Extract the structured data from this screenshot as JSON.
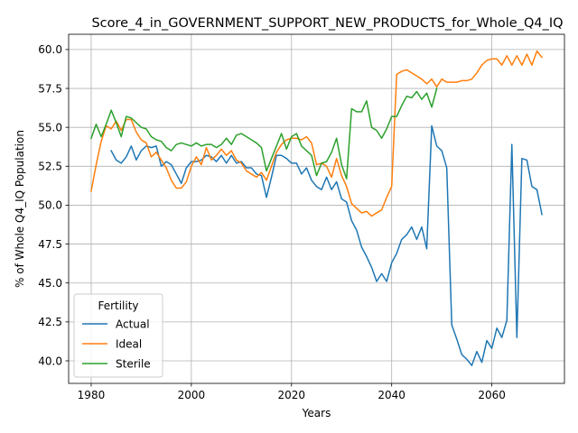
{
  "chart_data": {
    "type": "line",
    "title": "Score_4_in_GOVERNMENT_SUPPORT_NEW_PRODUCTS_for_Whole_Q4_IQ",
    "xlabel": "Years",
    "ylabel": "% of Whole Q4_IQ Population",
    "xlim": [
      1975.5,
      2074.5
    ],
    "ylim": [
      38.55,
      60.98
    ],
    "xticks": [
      1980,
      2000,
      2020,
      2040,
      2060
    ],
    "yticks": [
      40.0,
      42.5,
      45.0,
      47.5,
      50.0,
      52.5,
      55.0,
      57.5,
      60.0
    ],
    "xtick_labels": [
      "1980",
      "2000",
      "2020",
      "2040",
      "2060"
    ],
    "ytick_labels": [
      "40.0",
      "42.5",
      "45.0",
      "47.5",
      "50.0",
      "52.5",
      "55.0",
      "57.5",
      "60.0"
    ],
    "grid": true,
    "legend": {
      "title": "Fertility",
      "position": "lower-left"
    },
    "colors": {
      "Actual": "#1f77b4",
      "Ideal": "#ff7f0e",
      "Sterile": "#2ca02c"
    },
    "series": [
      {
        "name": "Actual",
        "x": [
          1984,
          1985,
          1986,
          1987,
          1988,
          1989,
          1990,
          1991,
          1992,
          1993,
          1994,
          1995,
          1996,
          1997,
          1998,
          1999,
          2000,
          2001,
          2002,
          2003,
          2004,
          2005,
          2006,
          2007,
          2008,
          2009,
          2010,
          2011,
          2012,
          2013,
          2014,
          2015,
          2016,
          2017,
          2018,
          2019,
          2020,
          2021,
          2022,
          2023,
          2024,
          2025,
          2026,
          2027,
          2028,
          2029,
          2030,
          2031,
          2032,
          2033,
          2034,
          2035,
          2036,
          2037,
          2038,
          2039,
          2040,
          2041,
          2042,
          2043,
          2044,
          2045,
          2046,
          2047,
          2048,
          2049,
          2050,
          2051,
          2052,
          2053,
          2054,
          2055,
          2056,
          2057,
          2058,
          2059,
          2060,
          2061,
          2062,
          2063,
          2064,
          2065,
          2066,
          2067,
          2068,
          2069,
          2070
        ],
        "values": [
          53.5,
          52.9,
          52.7,
          53.1,
          53.8,
          52.9,
          53.5,
          53.8,
          53.7,
          53.8,
          52.5,
          52.8,
          52.6,
          52.0,
          51.4,
          52.4,
          52.8,
          52.8,
          52.9,
          53.2,
          53.1,
          52.8,
          53.2,
          52.7,
          53.2,
          52.7,
          52.8,
          52.4,
          52.4,
          52.0,
          51.9,
          50.5,
          51.8,
          53.2,
          53.2,
          53.0,
          52.7,
          52.7,
          52.0,
          52.4,
          51.6,
          51.2,
          51.0,
          51.8,
          51.0,
          51.5,
          50.4,
          50.2,
          49.0,
          48.4,
          47.3,
          46.7,
          46.0,
          45.1,
          45.6,
          45.1,
          46.3,
          46.9,
          47.8,
          48.1,
          48.6,
          47.8,
          48.6,
          47.2,
          55.1,
          53.8,
          53.5,
          52.4,
          42.3,
          41.4,
          40.4,
          40.1,
          39.7,
          40.6,
          39.9,
          41.3,
          40.8,
          42.1,
          41.5,
          42.6,
          53.9,
          41.5,
          53.0,
          52.9,
          51.2,
          51.0,
          49.4
        ]
      },
      {
        "name": "Ideal",
        "x": [
          1980,
          1981,
          1982,
          1983,
          1984,
          1985,
          1986,
          1987,
          1988,
          1989,
          1990,
          1991,
          1992,
          1993,
          1994,
          1995,
          1996,
          1997,
          1998,
          1999,
          2000,
          2001,
          2002,
          2003,
          2004,
          2005,
          2006,
          2007,
          2008,
          2009,
          2010,
          2011,
          2012,
          2013,
          2014,
          2015,
          2016,
          2017,
          2018,
          2019,
          2020,
          2021,
          2022,
          2023,
          2024,
          2025,
          2026,
          2027,
          2028,
          2029,
          2030,
          2031,
          2032,
          2033,
          2034,
          2035,
          2036,
          2037,
          2038,
          2039,
          2040,
          2041,
          2042,
          2043,
          2044,
          2045,
          2046,
          2047,
          2048,
          2049,
          2050,
          2051,
          2052,
          2053,
          2054,
          2055,
          2056,
          2057,
          2058,
          2059,
          2060,
          2061,
          2062,
          2063,
          2064,
          2065,
          2066,
          2067,
          2068,
          2069,
          2070
        ],
        "values": [
          50.9,
          52.6,
          54.1,
          55.1,
          54.9,
          55.4,
          54.8,
          55.5,
          55.5,
          54.7,
          54.2,
          54.0,
          53.1,
          53.4,
          52.9,
          52.4,
          51.6,
          51.1,
          51.1,
          51.5,
          52.5,
          53.1,
          52.6,
          53.7,
          52.9,
          53.2,
          53.6,
          53.2,
          53.5,
          52.9,
          52.7,
          52.2,
          52.0,
          51.8,
          52.1,
          51.6,
          52.5,
          53.4,
          53.9,
          54.2,
          54.3,
          54.3,
          54.2,
          54.4,
          54.0,
          52.6,
          52.7,
          52.5,
          51.8,
          53.0,
          51.9,
          51.2,
          50.1,
          49.8,
          49.5,
          49.6,
          49.3,
          49.5,
          49.7,
          50.5,
          51.2,
          58.4,
          58.6,
          58.7,
          58.5,
          58.3,
          58.1,
          57.8,
          58.1,
          57.6,
          58.1,
          57.9,
          57.9,
          57.9,
          58.0,
          58.0,
          58.1,
          58.5,
          59.0,
          59.3,
          59.4,
          59.4,
          59.0,
          59.6,
          59.0,
          59.6,
          59.0,
          59.7,
          59.0,
          59.9,
          59.5
        ]
      },
      {
        "name": "Sterile",
        "x": [
          1980,
          1981,
          1982,
          1983,
          1984,
          1985,
          1986,
          1987,
          1988,
          1989,
          1990,
          1991,
          1992,
          1993,
          1994,
          1995,
          1996,
          1997,
          1998,
          1999,
          2000,
          2001,
          2002,
          2003,
          2004,
          2005,
          2006,
          2007,
          2008,
          2009,
          2010,
          2011,
          2012,
          2013,
          2014,
          2015,
          2016,
          2017,
          2018,
          2019,
          2020,
          2021,
          2022,
          2023,
          2024,
          2025,
          2026,
          2027,
          2028,
          2029,
          2030,
          2031,
          2032,
          2033,
          2034,
          2035,
          2036,
          2037,
          2038,
          2039,
          2040,
          2041,
          2042,
          2043,
          2044,
          2045,
          2046,
          2047,
          2048,
          2049
        ],
        "values": [
          54.3,
          55.2,
          54.4,
          55.2,
          56.1,
          55.3,
          54.4,
          55.7,
          55.6,
          55.3,
          55.0,
          54.9,
          54.4,
          54.2,
          54.1,
          53.7,
          53.5,
          53.9,
          54.0,
          53.9,
          53.8,
          54.0,
          53.8,
          53.9,
          53.9,
          53.7,
          53.9,
          54.3,
          53.9,
          54.5,
          54.6,
          54.4,
          54.2,
          54.0,
          53.7,
          52.2,
          53.0,
          53.8,
          54.6,
          53.6,
          54.4,
          54.6,
          53.8,
          53.5,
          53.2,
          51.9,
          52.7,
          52.8,
          53.4,
          54.3,
          52.6,
          51.7,
          56.2,
          56.0,
          56.0,
          56.7,
          55.0,
          54.8,
          54.3,
          54.9,
          55.7,
          55.7,
          56.4,
          57.0,
          56.9,
          57.3,
          56.8,
          57.2,
          56.3,
          57.5
        ]
      }
    ]
  }
}
